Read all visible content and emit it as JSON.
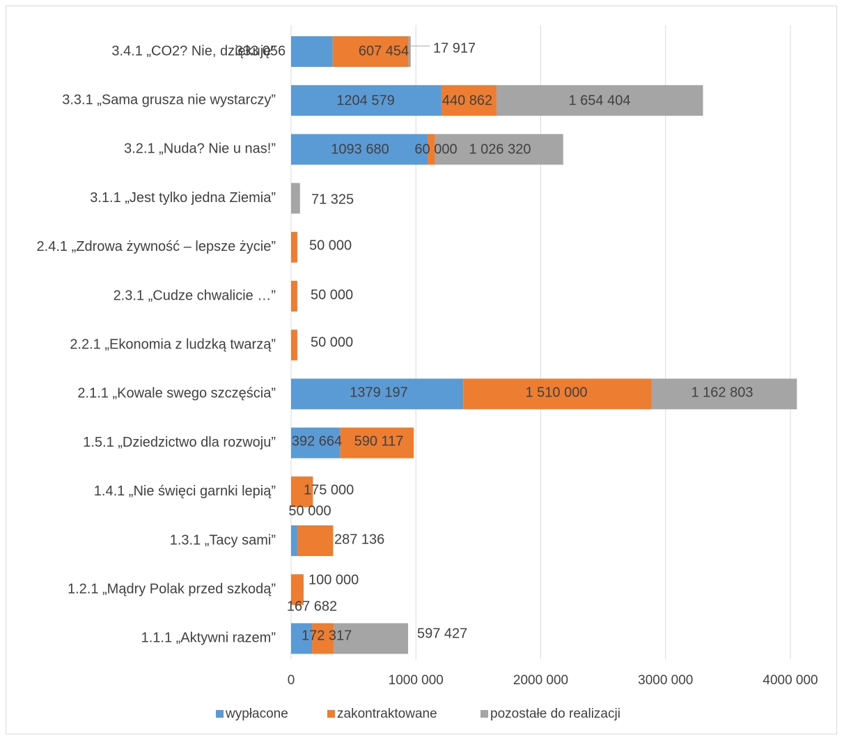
{
  "chart_data": {
    "type": "bar",
    "orientation": "horizontal",
    "stacked": true,
    "categories": [
      "3.4.1 „CO2? Nie, dziękuję”",
      "3.3.1 „Sama grusza nie wystarczy”",
      "3.2.1 „Nuda? Nie u nas!”",
      "3.1.1 „Jest tylko jedna Ziemia”",
      "2.4.1 „Zdrowa żywność – lepsze życie”",
      "2.3.1 „Cudze chwalicie …”",
      "2.2.1 „Ekonomia z ludzką twarzą”",
      "2.1.1 „Kowale swego szczęścia”",
      "1.5.1 „Dziedzictwo dla rozwoju”",
      "1.4.1 „Nie święci garnki lepią”",
      "1.3.1 „Tacy sami”",
      "1.2.1 „Mądry Polak przed szkodą”",
      "1.1.1 „Aktywni razem”"
    ],
    "series": [
      {
        "name": "wypłacone",
        "color": "#5b9bd5",
        "values": [
          333056,
          1204579,
          1093680,
          0,
          0,
          0,
          0,
          1379197,
          392664,
          0,
          50000,
          0,
          167682
        ],
        "labels": [
          "333 056",
          "1204 579",
          "1093 680",
          "",
          "",
          "",
          "",
          "1379 197",
          "392 664",
          "",
          "50 000",
          "",
          "167 682"
        ]
      },
      {
        "name": "zakontraktowane",
        "color": "#ed7d31",
        "values": [
          607454,
          440862,
          60000,
          0,
          50000,
          50000,
          50000,
          1510000,
          590117,
          175000,
          287136,
          100000,
          172317
        ],
        "labels": [
          "607 454",
          "440 862",
          "60 000",
          "",
          "50 000",
          "50 000",
          "50 000",
          "1 510 000",
          "590 117",
          "175 000",
          "287 136",
          "100 000",
          "172 317"
        ]
      },
      {
        "name": "pozostałe do realizacji",
        "color": "#a5a5a5",
        "values": [
          17917,
          1654404,
          1026320,
          71325,
          0,
          0,
          0,
          1162803,
          0,
          0,
          0,
          0,
          597427
        ],
        "labels": [
          "17 917",
          "1 654 404",
          "1 026 320",
          "71 325",
          "",
          "",
          "",
          "1 162 803",
          "",
          "",
          "",
          "",
          "597 427"
        ]
      }
    ],
    "xlim": [
      0,
      4000000
    ],
    "xticks": [
      0,
      1000000,
      2000000,
      3000000,
      4000000
    ],
    "xtick_labels": [
      "0",
      "1000 000",
      "2000 000",
      "3000 000",
      "4000 000"
    ],
    "grid": "vertical",
    "legend": "bottom",
    "title": "",
    "xlabel": "",
    "ylabel": ""
  }
}
